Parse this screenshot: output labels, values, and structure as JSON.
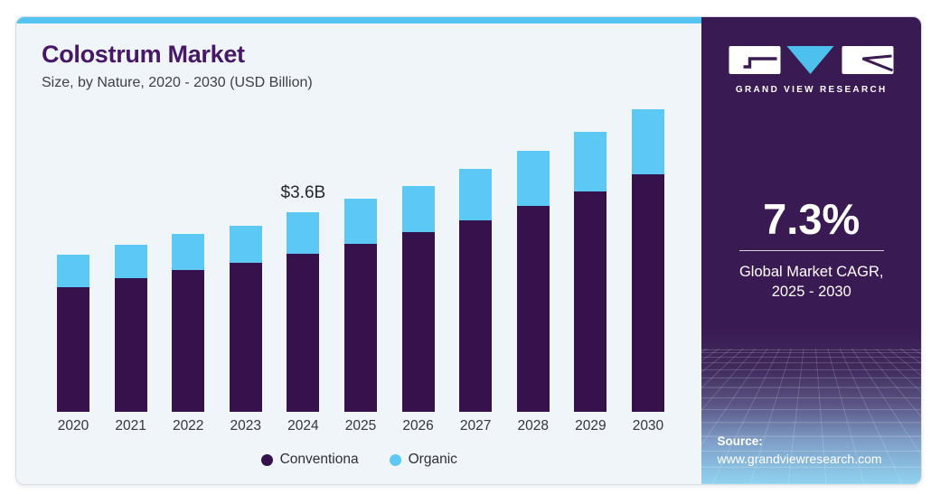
{
  "page": {
    "title": "Colostrum Market",
    "subtitle": "Size, by Nature, 2020 - 2030 (USD Billion)"
  },
  "chart_data": {
    "type": "bar",
    "stacked": true,
    "title": "Colostrum Market Size, by Nature, 2020 - 2030 (USD Billion)",
    "unit": "USD Billion",
    "categories": [
      "2020",
      "2021",
      "2022",
      "2023",
      "2024",
      "2025",
      "2026",
      "2027",
      "2028",
      "2029",
      "2030"
    ],
    "series": [
      {
        "name": "Conventiona",
        "color": "#35124B",
        "values": [
          2.25,
          2.4,
          2.55,
          2.69,
          2.85,
          3.03,
          3.24,
          3.45,
          3.7,
          3.96,
          4.27
        ]
      },
      {
        "name": "Organic",
        "color": "#5BC9F3",
        "values": [
          0.58,
          0.6,
          0.65,
          0.67,
          0.75,
          0.81,
          0.83,
          0.92,
          0.99,
          1.07,
          1.17
        ]
      }
    ],
    "annotation": {
      "category": "2024",
      "text": "$3.6B"
    },
    "ylim": [
      0,
      5.6
    ],
    "grid": false,
    "legend_position": "bottom"
  },
  "sidebar": {
    "brand": "GRAND VIEW RESEARCH",
    "cagr": {
      "value": "7.3%",
      "label_line1": "Global Market CAGR,",
      "label_line2": "2025 - 2030"
    },
    "source": {
      "label": "Source:",
      "url": "www.grandviewresearch.com"
    }
  },
  "colors": {
    "accent_bar": "#54C4F0",
    "conventional": "#35124B",
    "organic": "#5BC9F3",
    "sidebar_bg": "#3A1A52",
    "title": "#471866",
    "card_bg": "#EFF5F9",
    "logo_triangle": "#4EC0ED"
  }
}
